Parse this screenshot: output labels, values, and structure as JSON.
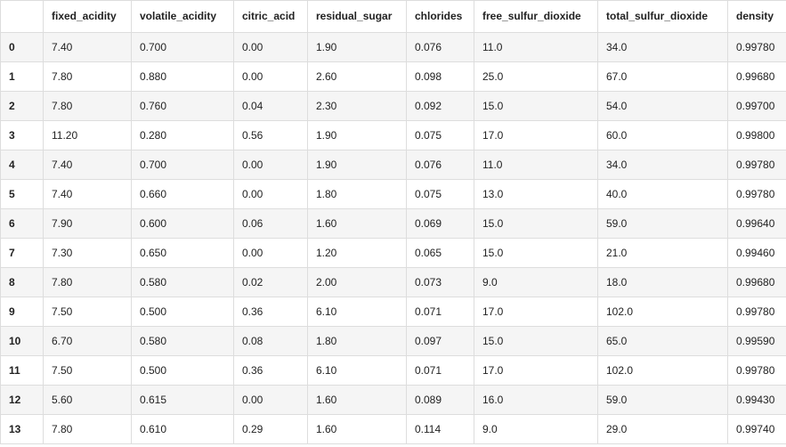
{
  "columns": [
    "",
    "fixed_acidity",
    "volatile_acidity",
    "citric_acid",
    "residual_sugar",
    "chlorides",
    "free_sulfur_dioxide",
    "total_sulfur_dioxide",
    "density"
  ],
  "rows": [
    [
      "0",
      "7.40",
      "0.700",
      "0.00",
      "1.90",
      "0.076",
      "11.0",
      "34.0",
      "0.99780"
    ],
    [
      "1",
      "7.80",
      "0.880",
      "0.00",
      "2.60",
      "0.098",
      "25.0",
      "67.0",
      "0.99680"
    ],
    [
      "2",
      "7.80",
      "0.760",
      "0.04",
      "2.30",
      "0.092",
      "15.0",
      "54.0",
      "0.99700"
    ],
    [
      "3",
      "11.20",
      "0.280",
      "0.56",
      "1.90",
      "0.075",
      "17.0",
      "60.0",
      "0.99800"
    ],
    [
      "4",
      "7.40",
      "0.700",
      "0.00",
      "1.90",
      "0.076",
      "11.0",
      "34.0",
      "0.99780"
    ],
    [
      "5",
      "7.40",
      "0.660",
      "0.00",
      "1.80",
      "0.075",
      "13.0",
      "40.0",
      "0.99780"
    ],
    [
      "6",
      "7.90",
      "0.600",
      "0.06",
      "1.60",
      "0.069",
      "15.0",
      "59.0",
      "0.99640"
    ],
    [
      "7",
      "7.30",
      "0.650",
      "0.00",
      "1.20",
      "0.065",
      "15.0",
      "21.0",
      "0.99460"
    ],
    [
      "8",
      "7.80",
      "0.580",
      "0.02",
      "2.00",
      "0.073",
      "9.0",
      "18.0",
      "0.99680"
    ],
    [
      "9",
      "7.50",
      "0.500",
      "0.36",
      "6.10",
      "0.071",
      "17.0",
      "102.0",
      "0.99780"
    ],
    [
      "10",
      "6.70",
      "0.580",
      "0.08",
      "1.80",
      "0.097",
      "15.0",
      "65.0",
      "0.99590"
    ],
    [
      "11",
      "7.50",
      "0.500",
      "0.36",
      "6.10",
      "0.071",
      "17.0",
      "102.0",
      "0.99780"
    ],
    [
      "12",
      "5.60",
      "0.615",
      "0.00",
      "1.60",
      "0.089",
      "16.0",
      "59.0",
      "0.99430"
    ],
    [
      "13",
      "7.80",
      "0.610",
      "0.29",
      "1.60",
      "0.114",
      "9.0",
      "29.0",
      "0.99740"
    ]
  ]
}
